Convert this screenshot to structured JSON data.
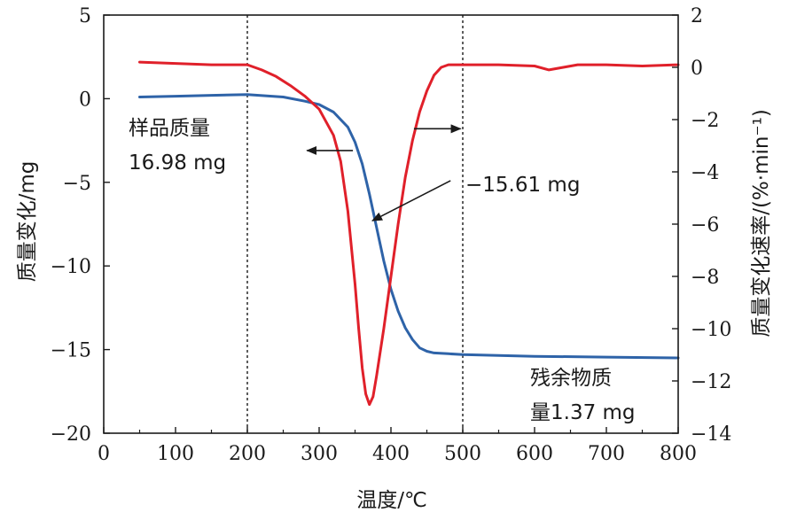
{
  "chart_data": {
    "type": "line",
    "xlabel": "温度/℃",
    "ylabel_left": "质量变化/mg",
    "ylabel_right": "质量变化速率/(%·min⁻¹)",
    "xlim": [
      0,
      800
    ],
    "ylim_left": [
      -20,
      5
    ],
    "ylim_right": [
      -14,
      2
    ],
    "x_ticks": [
      "0",
      "100",
      "200",
      "300",
      "400",
      "500",
      "600",
      "700",
      "800"
    ],
    "y_left_ticks": [
      "5",
      "0",
      "-5",
      "-10",
      "-15",
      "-20"
    ],
    "y_right_ticks": [
      "2",
      "0",
      "-2",
      "-4",
      "-6",
      "-8",
      "-10",
      "-12",
      "-14"
    ],
    "grid": false,
    "vlines": [
      200,
      500
    ],
    "series": [
      {
        "axis": "left",
        "color": "#2e63a8",
        "x": [
          50,
          100,
          150,
          200,
          250,
          280,
          300,
          320,
          340,
          350,
          360,
          370,
          380,
          390,
          400,
          410,
          420,
          430,
          440,
          450,
          460,
          480,
          500,
          600,
          700,
          800
        ],
        "y": [
          0.1,
          0.15,
          0.2,
          0.25,
          0.1,
          -0.15,
          -0.35,
          -0.8,
          -1.7,
          -2.6,
          -3.9,
          -5.7,
          -7.7,
          -9.7,
          -11.4,
          -12.7,
          -13.7,
          -14.4,
          -14.9,
          -15.1,
          -15.2,
          -15.25,
          -15.3,
          -15.4,
          -15.45,
          -15.5
        ]
      },
      {
        "axis": "right",
        "color": "#e0202a",
        "x": [
          50,
          100,
          150,
          200,
          220,
          240,
          260,
          280,
          300,
          320,
          330,
          340,
          350,
          355,
          360,
          365,
          370,
          375,
          380,
          390,
          400,
          410,
          420,
          430,
          440,
          450,
          460,
          470,
          480,
          490,
          500,
          550,
          600,
          620,
          640,
          660,
          700,
          750,
          800
        ],
        "y": [
          0.2,
          0.15,
          0.1,
          0.1,
          -0.1,
          -0.35,
          -0.7,
          -1.1,
          -1.6,
          -2.6,
          -3.6,
          -5.5,
          -8.3,
          -10.0,
          -11.5,
          -12.5,
          -12.9,
          -12.6,
          -11.8,
          -10.0,
          -8.0,
          -6.0,
          -4.2,
          -2.8,
          -1.7,
          -0.9,
          -0.3,
          0.0,
          0.1,
          0.1,
          0.1,
          0.1,
          0.05,
          -0.1,
          0.0,
          0.1,
          0.1,
          0.05,
          0.1
        ]
      }
    ],
    "annotations": [
      {
        "id": "sample-mass-line1",
        "text": "样品质量"
      },
      {
        "id": "sample-mass-line2",
        "text": "16.98 mg"
      },
      {
        "id": "mass-loss",
        "text": "−15.61 mg"
      },
      {
        "id": "residual-line1",
        "text": "残余物质"
      },
      {
        "id": "residual-line2",
        "text": "量1.37 mg"
      }
    ]
  }
}
